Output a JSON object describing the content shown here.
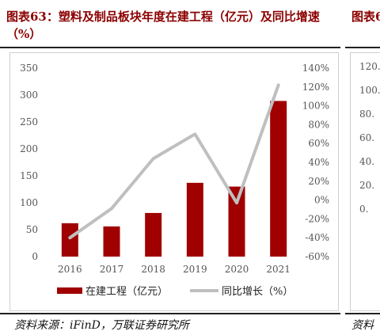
{
  "title": "图表63：塑料及制品板块年度在建工程（亿元）及同比增速（%）",
  "next_panel": {
    "title_fragment": "图表6",
    "tick_labels": [
      "120.",
      "100.",
      "80.",
      "60.",
      "40.",
      "20.",
      "0."
    ],
    "source_fragment": "资料"
  },
  "source": "资料来源：iFinD，万联证券研究所",
  "colors": {
    "bar": "#a00000",
    "line": "#bfbfbf",
    "title": "#8b0000"
  },
  "chart_data": {
    "type": "bar",
    "categories": [
      "2016",
      "2017",
      "2018",
      "2019",
      "2020",
      "2021"
    ],
    "series": [
      {
        "name": "在建工程（亿元）",
        "type": "bar",
        "axis": "left",
        "values": [
          62,
          56,
          81,
          137,
          130,
          289
        ]
      },
      {
        "name": "同比增长（%）",
        "type": "line",
        "axis": "right",
        "values": [
          -40,
          -9,
          44,
          70,
          -3,
          122
        ]
      }
    ],
    "y_left": {
      "min": 0,
      "max": 350,
      "ticks": [
        "0",
        "50",
        "100",
        "150",
        "200",
        "250",
        "300",
        "350"
      ]
    },
    "y_right": {
      "min": -60,
      "max": 140,
      "ticks": [
        "-60%",
        "-40%",
        "-20%",
        "0%",
        "20%",
        "40%",
        "60%",
        "80%",
        "100%",
        "120%",
        "140%"
      ]
    },
    "legend_position": "bottom",
    "grid": false
  }
}
